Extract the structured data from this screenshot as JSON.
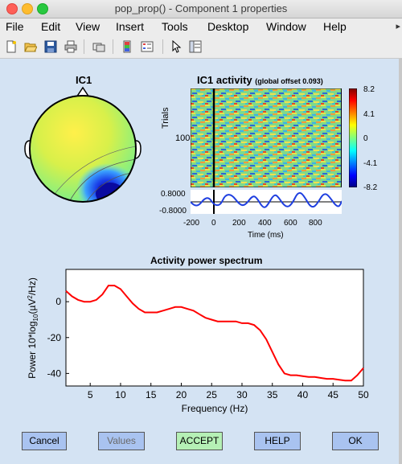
{
  "window": {
    "title": "pop_prop() - Component 1 properties"
  },
  "menu": [
    "File",
    "Edit",
    "View",
    "Insert",
    "Tools",
    "Desktop",
    "Window",
    "Help"
  ],
  "toolbar": [
    "new-icon",
    "open-icon",
    "save-icon",
    "print-icon",
    "link-icon",
    "colorbar-icon",
    "legend-icon",
    "pointer-icon",
    "property-editor-icon"
  ],
  "topo": {
    "title": "IC1"
  },
  "erp_image": {
    "title": "IC1 activity",
    "subtitle": "(global offset 0.093)",
    "ylabel": "Trials",
    "ytick": "100",
    "colorbar_ticks": [
      "8.2",
      "4.1",
      "0",
      "-4.1",
      "-8.2"
    ],
    "erp_yticks": [
      "0.8000",
      "-0.8000"
    ],
    "xticks": [
      "-200",
      "0",
      "200",
      "400",
      "600",
      "800"
    ],
    "xlabel": "Time (ms)"
  },
  "chart_data": {
    "type": "line",
    "title": "Activity power spectrum",
    "xlabel": "Frequency (Hz)",
    "ylabel_parts": [
      "Power 10*log",
      "10",
      "(",
      "µ",
      "V",
      "2",
      "/Hz)"
    ],
    "xlim": [
      1,
      50
    ],
    "ylim": [
      -47,
      18
    ],
    "xticks": [
      5,
      10,
      15,
      20,
      25,
      30,
      35,
      40,
      45,
      50
    ],
    "yticks": [
      0,
      -20,
      -40
    ],
    "line_color": "#ff0000",
    "x": [
      1,
      2,
      3,
      4,
      5,
      6,
      7,
      8,
      9,
      10,
      11,
      12,
      13,
      14,
      15,
      16,
      17,
      18,
      19,
      20,
      21,
      22,
      23,
      24,
      25,
      26,
      27,
      28,
      29,
      30,
      31,
      32,
      33,
      34,
      35,
      36,
      37,
      38,
      39,
      40,
      41,
      42,
      43,
      44,
      45,
      46,
      47,
      48,
      49,
      50
    ],
    "y": [
      6,
      3,
      1,
      0,
      0,
      1,
      4,
      9,
      9,
      7,
      3,
      -1,
      -4,
      -6,
      -6,
      -6,
      -5,
      -4,
      -3,
      -3,
      -4,
      -5,
      -7,
      -9,
      -10,
      -11,
      -11,
      -11,
      -11,
      -12,
      -12,
      -13,
      -16,
      -21,
      -28,
      -35,
      -40,
      -41,
      -41,
      -41.5,
      -42,
      -42,
      -42.5,
      -43,
      -43,
      -43.5,
      -44,
      -44,
      -41,
      -37
    ]
  },
  "buttons": [
    "Cancel",
    "Values",
    "ACCEPT",
    "HELP",
    "OK"
  ]
}
